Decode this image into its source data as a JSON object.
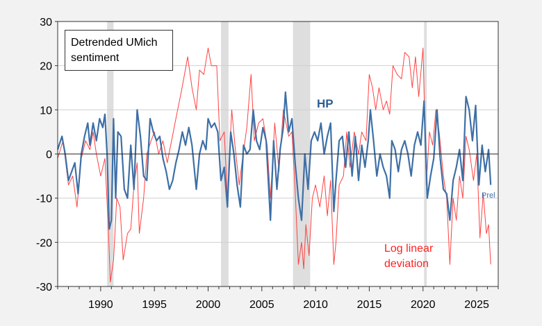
{
  "chart_data": {
    "type": "line",
    "title": "Detrended UMich sentiment",
    "xlabel": "",
    "ylabel": "",
    "xlim": [
      1986,
      2027
    ],
    "ylim": [
      -30,
      30
    ],
    "yticks": [
      -30,
      -20,
      -10,
      0,
      10,
      20,
      30
    ],
    "xticks": [
      1990,
      1995,
      2000,
      2005,
      2010,
      2015,
      2020,
      2025
    ],
    "grid": true,
    "recessions": [
      [
        1990.6,
        1991.2
      ],
      [
        2001.2,
        2001.9
      ],
      [
        2007.9,
        2009.5
      ],
      [
        2020.1,
        2020.35
      ]
    ],
    "colors": {
      "hp": "#3d6fa6",
      "loglinear": "#ff4040",
      "recession": "#dedede"
    },
    "annotations": {
      "hp": "HP",
      "prel": "Prel",
      "loglinear": "Log linear\ndeviation"
    },
    "series": [
      {
        "name": "HP",
        "x": [
          1986.0,
          1986.4,
          1986.7,
          1987.0,
          1987.3,
          1987.6,
          1987.9,
          1988.2,
          1988.5,
          1988.8,
          1989.0,
          1989.3,
          1989.6,
          1989.9,
          1990.2,
          1990.4,
          1990.6,
          1990.8,
          1991.0,
          1991.2,
          1991.4,
          1991.6,
          1991.9,
          1992.2,
          1992.5,
          1992.8,
          1993.1,
          1993.4,
          1993.7,
          1994.0,
          1994.3,
          1994.6,
          1994.9,
          1995.2,
          1995.5,
          1995.8,
          1996.1,
          1996.4,
          1996.7,
          1997.0,
          1997.3,
          1997.6,
          1997.9,
          1998.2,
          1998.5,
          1998.9,
          1999.2,
          1999.5,
          1999.8,
          2000.0,
          2000.3,
          2000.6,
          2000.9,
          2001.2,
          2001.5,
          2001.8,
          2002.1,
          2002.4,
          2002.7,
          2003.0,
          2003.3,
          2003.6,
          2003.9,
          2004.2,
          2004.5,
          2004.8,
          2005.1,
          2005.4,
          2005.8,
          2006.1,
          2006.4,
          2006.7,
          2007.0,
          2007.2,
          2007.5,
          2007.8,
          2008.1,
          2008.4,
          2008.7,
          2009.0,
          2009.3,
          2009.6,
          2009.9,
          2010.2,
          2010.5,
          2010.8,
          2011.1,
          2011.4,
          2011.7,
          2011.9,
          2012.2,
          2012.5,
          2012.8,
          2013.1,
          2013.4,
          2013.7,
          2014.0,
          2014.3,
          2014.6,
          2014.9,
          2015.1,
          2015.4,
          2015.7,
          2016.0,
          2016.3,
          2016.6,
          2016.9,
          2017.1,
          2017.4,
          2017.7,
          2018.0,
          2018.3,
          2018.6,
          2018.9,
          2019.2,
          2019.5,
          2019.8,
          2020.1,
          2020.4,
          2020.7,
          2021.0,
          2021.3,
          2021.6,
          2021.9,
          2022.2,
          2022.5,
          2022.8,
          2023.1,
          2023.4,
          2023.7,
          2024.0,
          2024.3,
          2024.6,
          2024.9,
          2025.2,
          2025.5,
          2025.8,
          2026.1,
          2026.3
        ],
        "values": [
          1,
          4,
          0,
          -6,
          -4,
          -2,
          -9,
          0,
          4,
          7,
          2,
          7,
          3,
          8,
          6,
          9,
          0,
          -17,
          -15,
          8,
          -10,
          5,
          4,
          -8,
          -10,
          2,
          -8,
          10,
          4,
          -5,
          -6,
          8,
          5,
          3,
          4,
          -1,
          -4,
          -8,
          -6,
          -2,
          1,
          5,
          2,
          6,
          2,
          -8,
          0,
          3,
          1,
          8,
          6,
          7,
          5,
          -6,
          -3,
          -12,
          5,
          0,
          -7,
          -12,
          2,
          0,
          1,
          10,
          3,
          1,
          6,
          3,
          -15,
          3,
          -8,
          1,
          6,
          14,
          5,
          8,
          -2,
          -10,
          -15,
          0,
          -8,
          3,
          5,
          3,
          7,
          0,
          4,
          7,
          -13,
          -6,
          3,
          4,
          -3,
          5,
          -5,
          4,
          -6,
          2,
          -3,
          3,
          10,
          3,
          -5,
          0,
          -3,
          -5,
          -10,
          3,
          1,
          -4,
          1,
          3,
          0,
          -5,
          2,
          5,
          2,
          12,
          -10,
          -5,
          -1,
          10,
          -1,
          -8,
          -9,
          -15,
          -6,
          -3,
          1,
          -6,
          13,
          10,
          3,
          11,
          -7,
          2,
          -4,
          1,
          -7
        ]
      },
      {
        "name": "Log linear deviation",
        "x": [
          1986.0,
          1986.5,
          1987.0,
          1987.4,
          1987.8,
          1988.2,
          1988.6,
          1989.0,
          1989.3,
          1989.6,
          1990.0,
          1990.4,
          1990.7,
          1990.9,
          1991.2,
          1991.5,
          1991.8,
          1992.1,
          1992.5,
          1992.8,
          1993.1,
          1993.4,
          1993.6,
          1994.0,
          1994.3,
          1994.7,
          1995.0,
          1995.4,
          1995.8,
          1996.2,
          1996.6,
          1997.0,
          1997.5,
          1997.8,
          1998.1,
          1998.5,
          1998.9,
          1999.2,
          1999.6,
          2000.0,
          2000.3,
          2000.8,
          2001.1,
          2001.5,
          2001.8,
          2002.2,
          2002.5,
          2002.9,
          2003.2,
          2003.6,
          2004.0,
          2004.3,
          2004.7,
          2005.1,
          2005.5,
          2005.8,
          2006.2,
          2006.6,
          2007.0,
          2007.5,
          2007.8,
          2008.1,
          2008.4,
          2008.7,
          2008.9,
          2009.1,
          2009.4,
          2009.7,
          2010.0,
          2010.4,
          2010.8,
          2011.1,
          2011.4,
          2011.7,
          2011.9,
          2012.2,
          2012.6,
          2012.9,
          2013.2,
          2013.6,
          2014.0,
          2014.3,
          2014.7,
          2015.0,
          2015.3,
          2015.6,
          2015.9,
          2016.3,
          2016.6,
          2016.9,
          2017.2,
          2017.6,
          2018.0,
          2018.3,
          2018.7,
          2019.0,
          2019.3,
          2019.6,
          2020.0,
          2020.3,
          2020.6,
          2020.9,
          2021.2,
          2021.5,
          2021.9,
          2022.2,
          2022.5,
          2022.8,
          2023.1,
          2023.4,
          2023.7,
          2024.0,
          2024.3,
          2024.7,
          2025.0,
          2025.3,
          2025.6,
          2025.9,
          2026.1,
          2026.3
        ],
        "values": [
          -1,
          3,
          -7,
          -5,
          -12,
          -1,
          3,
          1,
          5,
          0,
          -5,
          -1,
          -16,
          -29,
          -24,
          -10,
          -12,
          -24,
          -18,
          -17,
          -7,
          -2,
          -18,
          -10,
          0,
          3,
          5,
          0,
          3,
          -2,
          3,
          8,
          14,
          18,
          22,
          15,
          10,
          19,
          18,
          24,
          20,
          20,
          3,
          5,
          -10,
          10,
          2,
          -7,
          -1,
          6,
          18,
          3,
          7,
          8,
          2,
          -10,
          7,
          -4,
          10,
          4,
          5,
          -8,
          -25,
          -20,
          -26,
          -16,
          -23,
          -10,
          -7,
          -12,
          -5,
          -14,
          -6,
          -25,
          -20,
          -7,
          -5,
          5,
          -3,
          5,
          0,
          5,
          3,
          18,
          15,
          10,
          15,
          10,
          12,
          9,
          20,
          18,
          17,
          23,
          22,
          15,
          22,
          13,
          24,
          -7,
          5,
          2,
          10,
          5,
          -5,
          -10,
          -25,
          -10,
          -15,
          -5,
          -10,
          4,
          1,
          -6,
          0,
          -19,
          -9,
          -18,
          -16,
          -25
        ]
      }
    ]
  }
}
